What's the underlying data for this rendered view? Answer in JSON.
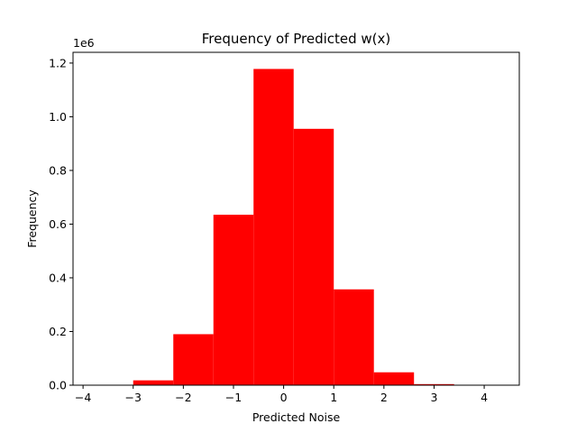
{
  "chart_data": {
    "type": "bar",
    "title": "Frequency of Predicted w(x)",
    "xlabel": "Predicted Noise",
    "ylabel": "Frequency",
    "y_offset_label": "1e6",
    "bar_color": "#ff0000",
    "bins": [
      {
        "x0": -3.8,
        "x1": -3.0,
        "value": 1000
      },
      {
        "x0": -3.0,
        "x1": -2.2,
        "value": 18000
      },
      {
        "x0": -2.2,
        "x1": -1.4,
        "value": 190000
      },
      {
        "x0": -1.4,
        "x1": -0.6,
        "value": 635000
      },
      {
        "x0": -0.6,
        "x1": 0.2,
        "value": 1178000
      },
      {
        "x0": 0.2,
        "x1": 1.0,
        "value": 955000
      },
      {
        "x0": 1.0,
        "x1": 1.8,
        "value": 357000
      },
      {
        "x0": 1.8,
        "x1": 2.6,
        "value": 48000
      },
      {
        "x0": 2.6,
        "x1": 3.4,
        "value": 4000
      },
      {
        "x0": 3.4,
        "x1": 4.2,
        "value": 200
      }
    ],
    "xlim": [
      -4.2,
      4.7
    ],
    "ylim": [
      0,
      1240000
    ],
    "x_ticks": [
      -4,
      -3,
      -2,
      -1,
      0,
      1,
      2,
      3,
      4
    ],
    "x_tick_labels": [
      "−4",
      "−3",
      "−2",
      "−1",
      "0",
      "1",
      "2",
      "3",
      "4"
    ],
    "y_ticks": [
      0,
      200000,
      400000,
      600000,
      800000,
      1000000,
      1200000
    ],
    "y_tick_labels": [
      "0.0",
      "0.2",
      "0.4",
      "0.6",
      "0.8",
      "1.0",
      "1.2"
    ],
    "grid": false,
    "legend": "none"
  }
}
